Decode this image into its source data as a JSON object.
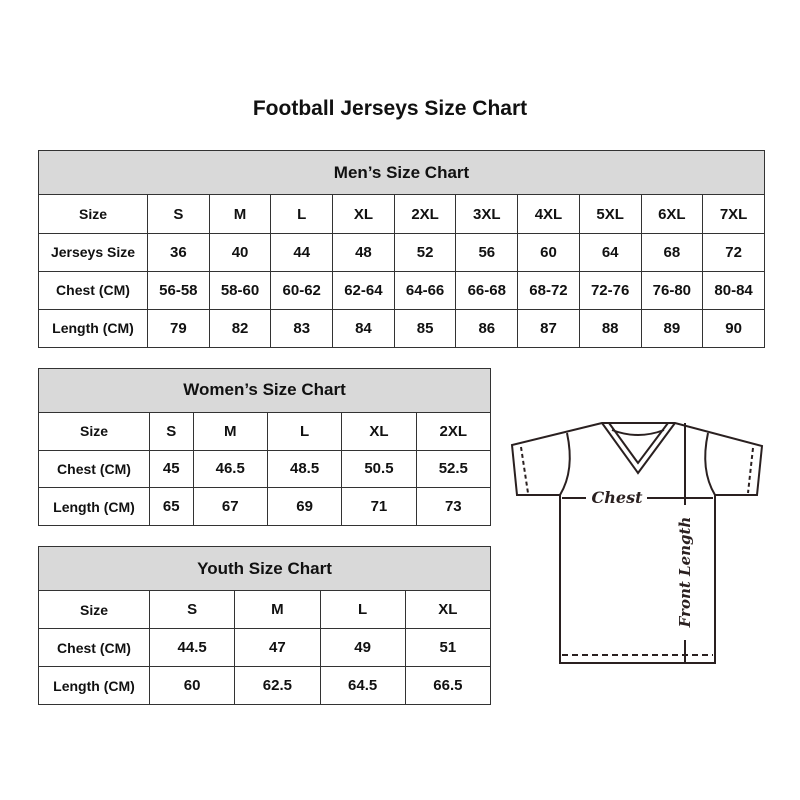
{
  "title": "Football Jerseys Size Chart",
  "men": {
    "heading": "Men’s Size Chart",
    "rows": [
      {
        "label": "Size",
        "values": [
          "S",
          "M",
          "L",
          "XL",
          "2XL",
          "3XL",
          "4XL",
          "5XL",
          "6XL",
          "7XL"
        ]
      },
      {
        "label": "Jerseys Size",
        "values": [
          "36",
          "40",
          "44",
          "48",
          "52",
          "56",
          "60",
          "64",
          "68",
          "72"
        ]
      },
      {
        "label": "Chest (CM)",
        "values": [
          "56-58",
          "58-60",
          "60-62",
          "62-64",
          "64-66",
          "66-68",
          "68-72",
          "72-76",
          "76-80",
          "80-84"
        ]
      },
      {
        "label": "Length (CM)",
        "values": [
          "79",
          "82",
          "83",
          "84",
          "85",
          "86",
          "87",
          "88",
          "89",
          "90"
        ]
      }
    ]
  },
  "women": {
    "heading": "Women’s Size Chart",
    "rows": [
      {
        "label": "Size",
        "values": [
          "S",
          "M",
          "L",
          "XL",
          "2XL"
        ]
      },
      {
        "label": "Chest (CM)",
        "values": [
          "45",
          "46.5",
          "48.5",
          "50.5",
          "52.5"
        ]
      },
      {
        "label": "Length (CM)",
        "values": [
          "65",
          "67",
          "69",
          "71",
          "73"
        ]
      }
    ]
  },
  "youth": {
    "heading": "Youth Size Chart",
    "rows": [
      {
        "label": "Size",
        "values": [
          "S",
          "M",
          "L",
          "XL"
        ]
      },
      {
        "label": "Chest (CM)",
        "values": [
          "44.5",
          "47",
          "49",
          "51"
        ]
      },
      {
        "label": "Length (CM)",
        "values": [
          "60",
          "62.5",
          "64.5",
          "66.5"
        ]
      }
    ]
  },
  "diagram": {
    "chest_label": "Chest",
    "length_label": "Front Length"
  }
}
